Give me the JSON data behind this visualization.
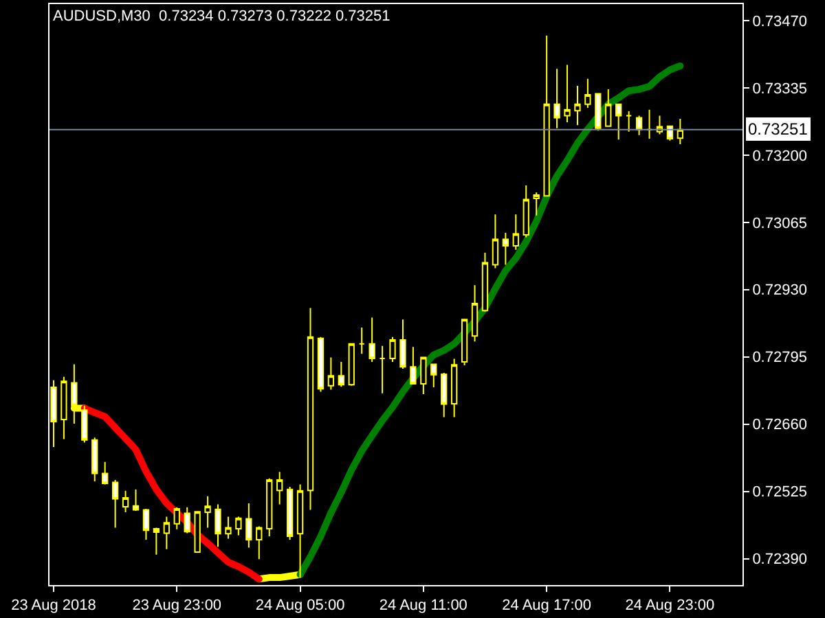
{
  "chart_data": {
    "type": "candlestick",
    "title": "AUDUSD,M30  0.73234 0.73273 0.73222 0.73251",
    "color": "#ffff00",
    "x": [
      "2018-08-23T17:00",
      "2018-08-23T17:30",
      "2018-08-23T18:00",
      "2018-08-23T18:30",
      "2018-08-23T19:00",
      "2018-08-23T19:30",
      "2018-08-23T20:00",
      "2018-08-23T20:30",
      "2018-08-23T21:00",
      "2018-08-23T21:30",
      "2018-08-23T22:00",
      "2018-08-23T22:30",
      "2018-08-23T23:00",
      "2018-08-23T23:30",
      "2018-08-24T00:00",
      "2018-08-24T00:30",
      "2018-08-24T01:00",
      "2018-08-24T01:30",
      "2018-08-24T02:00",
      "2018-08-24T02:30",
      "2018-08-24T03:00",
      "2018-08-24T03:30",
      "2018-08-24T04:00",
      "2018-08-24T04:30",
      "2018-08-24T05:00",
      "2018-08-24T05:30",
      "2018-08-24T06:00",
      "2018-08-24T06:30",
      "2018-08-24T07:00",
      "2018-08-24T07:30",
      "2018-08-24T08:00",
      "2018-08-24T08:30",
      "2018-08-24T09:00",
      "2018-08-24T09:30",
      "2018-08-24T10:00",
      "2018-08-24T10:30",
      "2018-08-24T11:00",
      "2018-08-24T11:30",
      "2018-08-24T12:00",
      "2018-08-24T12:30",
      "2018-08-24T13:00",
      "2018-08-24T13:30",
      "2018-08-24T14:00",
      "2018-08-24T14:30",
      "2018-08-24T15:00",
      "2018-08-24T15:30",
      "2018-08-24T16:00",
      "2018-08-24T16:30",
      "2018-08-24T17:00",
      "2018-08-24T17:30",
      "2018-08-24T18:00",
      "2018-08-24T18:30",
      "2018-08-24T19:00",
      "2018-08-24T19:30",
      "2018-08-24T20:00",
      "2018-08-24T20:30",
      "2018-08-24T21:00",
      "2018-08-24T21:30",
      "2018-08-24T22:00",
      "2018-08-24T22:30",
      "2018-08-24T23:00",
      "2018-08-24T23:30"
    ],
    "ohlc": [
      [
        0.72734,
        0.72748,
        0.72614,
        0.72665
      ],
      [
        0.72669,
        0.72755,
        0.7263,
        0.72746
      ],
      [
        0.72743,
        0.7278,
        0.72661,
        0.72697
      ],
      [
        0.72688,
        0.72697,
        0.72623,
        0.72628
      ],
      [
        0.72628,
        0.72633,
        0.72545,
        0.72561
      ],
      [
        0.72561,
        0.72584,
        0.72539,
        0.72541
      ],
      [
        0.72543,
        0.72548,
        0.72452,
        0.7251
      ],
      [
        0.72494,
        0.72526,
        0.72483,
        0.72512
      ],
      [
        0.72496,
        0.72529,
        0.72486,
        0.72488
      ],
      [
        0.72488,
        0.7249,
        0.72428,
        0.72447
      ],
      [
        0.7245,
        0.72452,
        0.72398,
        0.72443
      ],
      [
        0.72441,
        0.72474,
        0.72409,
        0.72462
      ],
      [
        0.7246,
        0.72493,
        0.72449,
        0.7249
      ],
      [
        0.72481,
        0.72493,
        0.72441,
        0.72444
      ],
      [
        0.72403,
        0.72484,
        0.72403,
        0.72484
      ],
      [
        0.72483,
        0.72515,
        0.72452,
        0.72495
      ],
      [
        0.72489,
        0.72499,
        0.72414,
        0.7244
      ],
      [
        0.7244,
        0.72474,
        0.7243,
        0.72452
      ],
      [
        0.7245,
        0.72474,
        0.72437,
        0.72471
      ],
      [
        0.7247,
        0.72501,
        0.72412,
        0.72428
      ],
      [
        0.72428,
        0.72455,
        0.72389,
        0.72452
      ],
      [
        0.7245,
        0.72551,
        0.72435,
        0.72548
      ],
      [
        0.72527,
        0.72564,
        0.72499,
        0.72548
      ],
      [
        0.72529,
        0.72534,
        0.72428,
        0.72435
      ],
      [
        0.7244,
        0.72539,
        0.72352,
        0.72526
      ],
      [
        0.72527,
        0.72893,
        0.72488,
        0.72835
      ],
      [
        0.72832,
        0.72835,
        0.72725,
        0.72731
      ],
      [
        0.72737,
        0.72794,
        0.72729,
        0.72757
      ],
      [
        0.72757,
        0.72785,
        0.72735,
        0.72739
      ],
      [
        0.72739,
        0.72821,
        0.72737,
        0.72821
      ],
      [
        0.72821,
        0.72854,
        0.72801,
        0.72821
      ],
      [
        0.72821,
        0.72874,
        0.72785,
        0.72792
      ],
      [
        0.72792,
        0.72817,
        0.72722,
        0.72792
      ],
      [
        0.72792,
        0.72835,
        0.72785,
        0.72829
      ],
      [
        0.72829,
        0.7287,
        0.72771,
        0.72775
      ],
      [
        0.72775,
        0.72815,
        0.72741,
        0.72741
      ],
      [
        0.72741,
        0.72794,
        0.7272,
        0.72794
      ],
      [
        0.7278,
        0.7278,
        0.72734,
        0.72759
      ],
      [
        0.7276,
        0.72763,
        0.72674,
        0.727
      ],
      [
        0.72701,
        0.72791,
        0.72674,
        0.72779
      ],
      [
        0.72785,
        0.7287,
        0.72778,
        0.7287
      ],
      [
        0.72837,
        0.72939,
        0.72826,
        0.72902
      ],
      [
        0.72888,
        0.73004,
        0.72886,
        0.72984
      ],
      [
        0.7298,
        0.73081,
        0.72973,
        0.73031
      ],
      [
        0.73031,
        0.73044,
        0.7298,
        0.73018
      ],
      [
        0.73018,
        0.73081,
        0.7301,
        0.73042
      ],
      [
        0.7304,
        0.73139,
        0.73035,
        0.73111
      ],
      [
        0.73113,
        0.73125,
        0.73079,
        0.7312
      ],
      [
        0.73118,
        0.7344,
        0.73117,
        0.73302
      ],
      [
        0.73302,
        0.73373,
        0.73254,
        0.73275
      ],
      [
        0.73279,
        0.73381,
        0.73266,
        0.73291
      ],
      [
        0.73289,
        0.73339,
        0.7326,
        0.73302
      ],
      [
        0.73302,
        0.73353,
        0.73295,
        0.73321
      ],
      [
        0.73323,
        0.73323,
        0.73249,
        0.73254
      ],
      [
        0.73258,
        0.73332,
        0.73258,
        0.73302
      ],
      [
        0.73302,
        0.73302,
        0.73231,
        0.73279
      ],
      [
        0.73279,
        0.73288,
        0.73247,
        0.73279
      ],
      [
        0.73275,
        0.73279,
        0.7324,
        0.73251
      ],
      [
        0.73251,
        0.73291,
        0.73233,
        0.73251
      ],
      [
        0.73247,
        0.73279,
        0.73242,
        0.73257
      ],
      [
        0.73258,
        0.73258,
        0.73229,
        0.73233
      ],
      [
        0.73234,
        0.73273,
        0.73222,
        0.73251
      ]
    ],
    "series": [
      {
        "type": "line",
        "color": "#ffff00",
        "values": [
          null,
          null,
          0.72692,
          0.72692,
          null,
          null,
          null,
          null,
          null,
          null,
          null,
          null,
          null,
          null,
          null,
          null,
          null,
          null,
          null,
          null,
          0.72349,
          0.72352,
          0.72352,
          0.72355,
          0.72358,
          null,
          null,
          null,
          null,
          null,
          null,
          null,
          null,
          null,
          null,
          null,
          null,
          null,
          null,
          null,
          null,
          null,
          null,
          null,
          null,
          null,
          null,
          null,
          null,
          null,
          null,
          null,
          null,
          null,
          null,
          null,
          null,
          null,
          null,
          null,
          null,
          null
        ]
      },
      {
        "type": "line",
        "color": "#ff0000",
        "values": [
          null,
          null,
          null,
          0.72692,
          0.72683,
          0.72675,
          0.72653,
          0.72631,
          0.72609,
          0.72565,
          0.72529,
          0.72501,
          0.72482,
          0.72463,
          0.72438,
          0.72421,
          0.72402,
          0.72383,
          0.72374,
          0.72363,
          0.72349,
          null,
          null,
          null,
          null,
          null,
          null,
          null,
          null,
          null,
          null,
          null,
          null,
          null,
          null,
          null,
          null,
          null,
          null,
          null,
          null,
          null,
          null,
          null,
          null,
          null,
          null,
          null,
          null,
          null,
          null,
          null,
          null,
          null,
          null,
          null,
          null,
          null,
          null,
          null,
          null,
          null
        ]
      },
      {
        "type": "line",
        "color": "#008000",
        "values": [
          null,
          null,
          null,
          null,
          null,
          null,
          null,
          null,
          null,
          null,
          null,
          null,
          null,
          null,
          null,
          null,
          null,
          null,
          null,
          null,
          null,
          null,
          null,
          null,
          0.72358,
          0.72394,
          0.72435,
          0.72482,
          0.72523,
          0.72568,
          0.72606,
          0.72637,
          0.72667,
          0.72694,
          0.72725,
          0.72752,
          0.72777,
          0.72799,
          0.72808,
          0.72821,
          0.72843,
          0.72866,
          0.72893,
          0.72932,
          0.72968,
          0.72993,
          0.73026,
          0.73067,
          0.73117,
          0.73158,
          0.73189,
          0.73224,
          0.73252,
          0.73277,
          0.73302,
          0.73315,
          0.73329,
          0.73332,
          0.73338,
          0.73357,
          0.73371,
          0.73379
        ]
      }
    ],
    "xlim": [
      "2018-08-23T16:48",
      "2018-08-25T02:32"
    ],
    "ylim": [
      0.72337,
      0.73503
    ],
    "xticks": [
      {
        "value": "2018-08-23T17:00",
        "label": "23 Aug 2018"
      },
      {
        "value": "2018-08-23T23:00",
        "label": "23 Aug 23:00"
      },
      {
        "value": "2018-08-24T05:00",
        "label": "24 Aug 05:00"
      },
      {
        "value": "2018-08-24T11:00",
        "label": "24 Aug 11:00"
      },
      {
        "value": "2018-08-24T17:00",
        "label": "24 Aug 17:00"
      },
      {
        "value": "2018-08-24T23:00",
        "label": "24 Aug 23:00"
      }
    ],
    "yticks": [
      {
        "value": 0.7347,
        "label": "0.73470"
      },
      {
        "value": 0.73335,
        "label": "0.73335"
      },
      {
        "value": 0.732,
        "label": "0.73200"
      },
      {
        "value": 0.73065,
        "label": "0.73065"
      },
      {
        "value": 0.7293,
        "label": "0.72930"
      },
      {
        "value": 0.72795,
        "label": "0.72795"
      },
      {
        "value": 0.7266,
        "label": "0.72660"
      },
      {
        "value": 0.72525,
        "label": "0.72525"
      },
      {
        "value": 0.7239,
        "label": "0.72390"
      }
    ],
    "ref_lines": [
      {
        "axis": "y",
        "value": 0.73251,
        "label": "0.73251",
        "color": "#778899"
      }
    ]
  }
}
